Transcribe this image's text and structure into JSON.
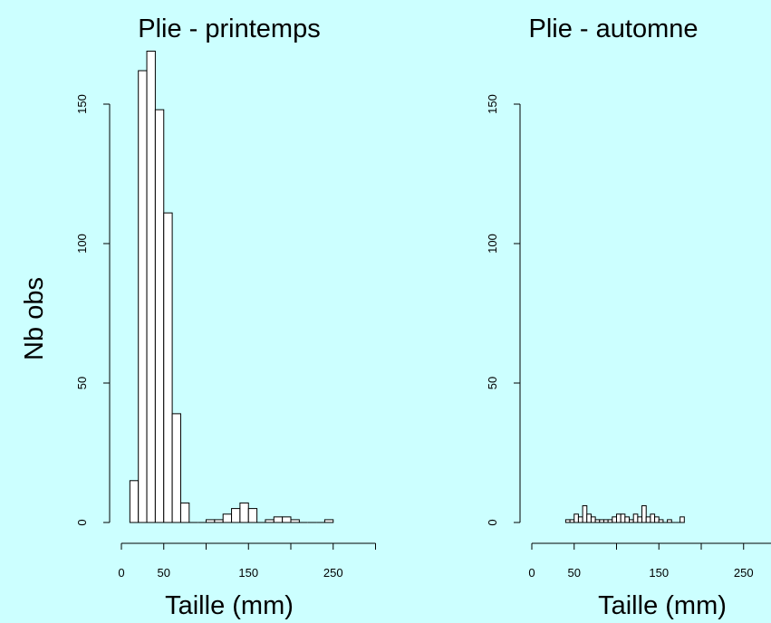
{
  "page": {
    "background": "#ccffff"
  },
  "y_axis_label": "Nb obs",
  "chart_data": [
    {
      "type": "bar",
      "title": "Plie - printemps",
      "xlabel": "Taille (mm)",
      "ylabel": "Nb obs",
      "xlim": [
        0,
        300
      ],
      "ylim": [
        0,
        170
      ],
      "x_ticks": [
        0,
        50,
        100,
        150,
        200,
        250,
        300
      ],
      "x_tick_labels": [
        "0",
        "50",
        "",
        "150",
        "",
        "250",
        ""
      ],
      "y_ticks": [
        0,
        50,
        100,
        150
      ],
      "y_tick_labels": [
        "0",
        "50",
        "100",
        "150"
      ],
      "bin_width": 10,
      "bins": [
        {
          "x0": 10,
          "count": 15
        },
        {
          "x0": 20,
          "count": 162
        },
        {
          "x0": 30,
          "count": 169
        },
        {
          "x0": 40,
          "count": 148
        },
        {
          "x0": 50,
          "count": 111
        },
        {
          "x0": 60,
          "count": 39
        },
        {
          "x0": 70,
          "count": 7
        },
        {
          "x0": 80,
          "count": 0
        },
        {
          "x0": 90,
          "count": 0
        },
        {
          "x0": 100,
          "count": 1
        },
        {
          "x0": 110,
          "count": 1
        },
        {
          "x0": 120,
          "count": 3
        },
        {
          "x0": 130,
          "count": 5
        },
        {
          "x0": 140,
          "count": 7
        },
        {
          "x0": 150,
          "count": 5
        },
        {
          "x0": 160,
          "count": 0
        },
        {
          "x0": 170,
          "count": 1
        },
        {
          "x0": 180,
          "count": 2
        },
        {
          "x0": 190,
          "count": 2
        },
        {
          "x0": 200,
          "count": 1
        },
        {
          "x0": 210,
          "count": 0
        },
        {
          "x0": 220,
          "count": 0
        },
        {
          "x0": 230,
          "count": 0
        },
        {
          "x0": 240,
          "count": 1
        }
      ]
    },
    {
      "type": "bar",
      "title": "Plie - automne",
      "xlabel": "Taille (mm)",
      "ylabel": "",
      "xlim": [
        0,
        300
      ],
      "ylim": [
        0,
        170
      ],
      "x_ticks": [
        0,
        50,
        100,
        150,
        200,
        250,
        300
      ],
      "x_tick_labels": [
        "0",
        "50",
        "",
        "150",
        "",
        "250",
        ""
      ],
      "y_ticks": [
        0,
        50,
        100,
        150
      ],
      "y_tick_labels": [
        "0",
        "50",
        "100",
        "150"
      ],
      "bin_width": 5,
      "bins": [
        {
          "x0": 40,
          "count": 1
        },
        {
          "x0": 45,
          "count": 1
        },
        {
          "x0": 50,
          "count": 3
        },
        {
          "x0": 55,
          "count": 2
        },
        {
          "x0": 60,
          "count": 6
        },
        {
          "x0": 65,
          "count": 3
        },
        {
          "x0": 70,
          "count": 2
        },
        {
          "x0": 75,
          "count": 1
        },
        {
          "x0": 80,
          "count": 1
        },
        {
          "x0": 85,
          "count": 1
        },
        {
          "x0": 90,
          "count": 1
        },
        {
          "x0": 95,
          "count": 2
        },
        {
          "x0": 100,
          "count": 3
        },
        {
          "x0": 105,
          "count": 3
        },
        {
          "x0": 110,
          "count": 2
        },
        {
          "x0": 115,
          "count": 1
        },
        {
          "x0": 120,
          "count": 3
        },
        {
          "x0": 125,
          "count": 2
        },
        {
          "x0": 130,
          "count": 6
        },
        {
          "x0": 135,
          "count": 2
        },
        {
          "x0": 140,
          "count": 3
        },
        {
          "x0": 145,
          "count": 2
        },
        {
          "x0": 150,
          "count": 1
        },
        {
          "x0": 155,
          "count": 0
        },
        {
          "x0": 160,
          "count": 1
        },
        {
          "x0": 165,
          "count": 0
        },
        {
          "x0": 170,
          "count": 0
        },
        {
          "x0": 175,
          "count": 2
        }
      ]
    }
  ]
}
